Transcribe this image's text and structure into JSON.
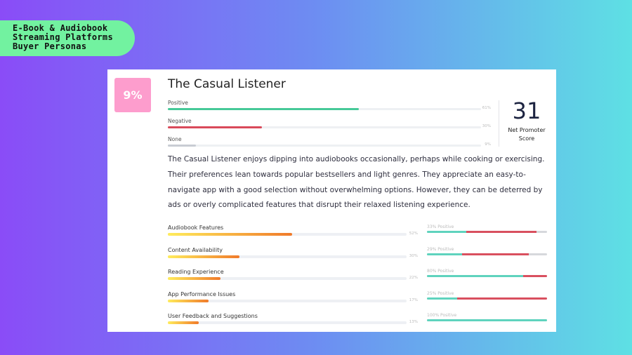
{
  "heading": {
    "line1": "E-Book & Audiobook",
    "line2": "Streaming Platforms",
    "line3": "Buyer Personas"
  },
  "persona": {
    "share": "9%",
    "name": "The Casual Listener",
    "sentiment": [
      {
        "label": "Positive",
        "value": 61,
        "value_text": "61%",
        "color": "#46c998"
      },
      {
        "label": "Negative",
        "value": 30,
        "value_text": "30%",
        "color": "#d94a5a"
      },
      {
        "label": "None",
        "value": 9,
        "value_text": "9%",
        "color": "#c8ccd3"
      }
    ],
    "nps": {
      "score": "31",
      "label_line1": "Net Promoter",
      "label_line2": "Score"
    },
    "description": "The Casual Listener enjoys dipping into audiobooks occasionally, perhaps while cooking or exercising. Their preferences lean towards popular bestsellers and light genres. They appreciate an easy-to-navigate app with a good selection without overwhelming options. However, they can be deterred by ads or overly complicated features that disrupt their relaxed listening experience.",
    "factors": [
      {
        "label": "Audiobook Features",
        "value": 52,
        "value_text": "52%",
        "positive": 33,
        "positive_text": "33% Positive",
        "negative": 58
      },
      {
        "label": "Content Availability",
        "value": 30,
        "value_text": "30%",
        "positive": 29,
        "positive_text": "29% Positive",
        "negative": 56
      },
      {
        "label": "Reading Experience",
        "value": 22,
        "value_text": "22%",
        "positive": 80,
        "positive_text": "80% Positive",
        "negative": 20
      },
      {
        "label": "App Performance Issues",
        "value": 17,
        "value_text": "17%",
        "positive": 25,
        "positive_text": "25% Positive",
        "negative": 75
      },
      {
        "label": "User Feedback and Suggestions",
        "value": 13,
        "value_text": "13%",
        "positive": 100,
        "positive_text": "100% Positive",
        "negative": 0
      }
    ]
  },
  "colors": {
    "positive": "#5fd3be",
    "negative": "#d9505f",
    "neutral": "#d6d8dc"
  }
}
